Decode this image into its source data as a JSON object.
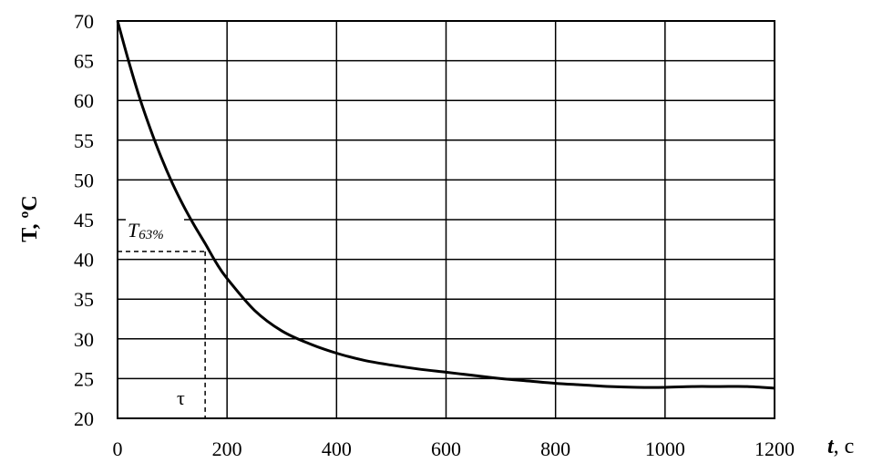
{
  "chart_data": {
    "type": "line",
    "title": "",
    "xlabel_main": "t",
    "xlabel_unit": ", с",
    "ylabel": "T, ºС",
    "xlim": [
      0,
      1200
    ],
    "ylim": [
      20,
      70
    ],
    "grid": true,
    "x_ticks": [
      0,
      200,
      400,
      600,
      800,
      1000,
      1200
    ],
    "y_ticks": [
      20,
      25,
      30,
      35,
      40,
      45,
      50,
      55,
      60,
      65,
      70
    ],
    "series": [
      {
        "color": "#000000",
        "points": [
          [
            0,
            70
          ],
          [
            20,
            65
          ],
          [
            40,
            60.4
          ],
          [
            60,
            56.4
          ],
          [
            80,
            52.8
          ],
          [
            100,
            49.6
          ],
          [
            120,
            46.8
          ],
          [
            140,
            44.3
          ],
          [
            160,
            42.0
          ],
          [
            180,
            39.6
          ],
          [
            200,
            37.6
          ],
          [
            250,
            33.6
          ],
          [
            300,
            31.0
          ],
          [
            350,
            29.4
          ],
          [
            400,
            28.2
          ],
          [
            450,
            27.3
          ],
          [
            500,
            26.7
          ],
          [
            550,
            26.2
          ],
          [
            600,
            25.8
          ],
          [
            650,
            25.4
          ],
          [
            700,
            25.0
          ],
          [
            750,
            24.7
          ],
          [
            800,
            24.4
          ],
          [
            850,
            24.2
          ],
          [
            900,
            24.0
          ],
          [
            950,
            23.9
          ],
          [
            1000,
            23.9
          ],
          [
            1050,
            24.0
          ],
          [
            1100,
            24.0
          ],
          [
            1150,
            24.0
          ],
          [
            1200,
            23.8
          ]
        ]
      }
    ],
    "annotations": {
      "t63_label_main": "T",
      "t63_label_sub": "63%",
      "t63_value": 41,
      "tau_label": "τ",
      "tau_value": 160
    }
  }
}
